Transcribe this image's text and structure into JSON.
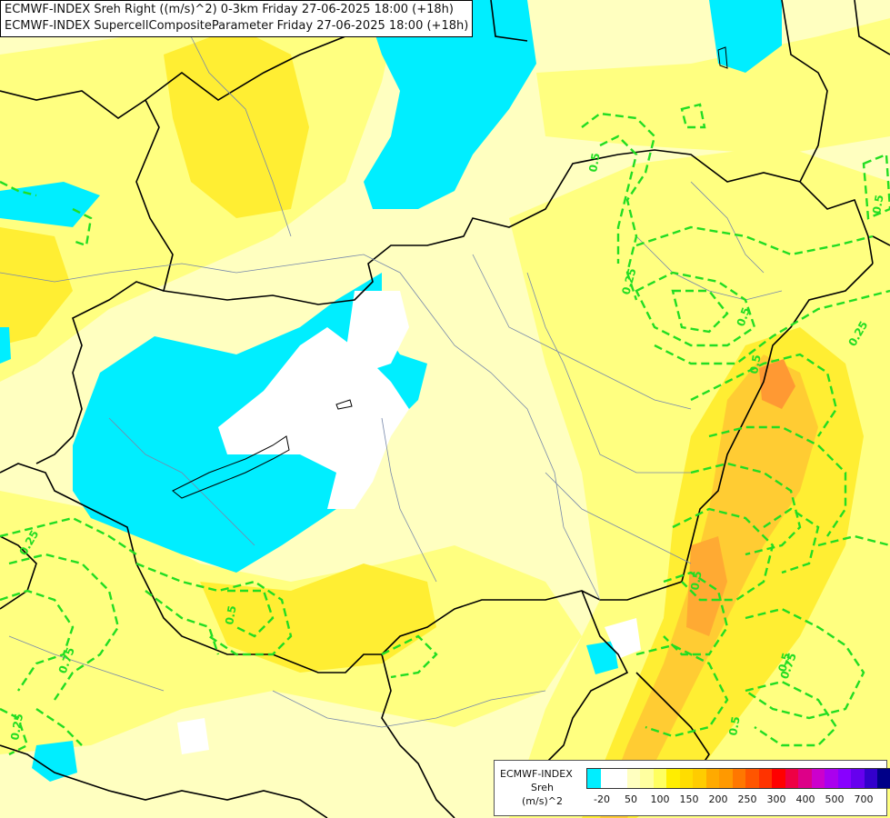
{
  "title": {
    "line1": "ECMWF-INDEX Sreh Right ((m/s)^2) 0-3km Friday 27-06-2025 18:00 (+18h)",
    "line2": "ECMWF-INDEX SupercellCompositeParameter Friday 27-06-2025 18:00 (+18h)"
  },
  "legend": {
    "model": "ECMWF-INDEX",
    "param": "Sreh",
    "unit": "(m/s)^2",
    "colors": [
      "#00eeff",
      "#ffffff",
      "#ffffff",
      "#ffffc0",
      "#ffffa0",
      "#ffff60",
      "#ffee00",
      "#ffdd00",
      "#ffcc00",
      "#ffaa00",
      "#ff9900",
      "#ff7700",
      "#ff5500",
      "#ff3300",
      "#ff0000",
      "#ee0044",
      "#dd0088",
      "#cc00cc",
      "#aa00ee",
      "#8800ff",
      "#6600ee",
      "#3300cc",
      "#000088"
    ],
    "ticks": [
      "-20",
      "50",
      "100",
      "150",
      "200",
      "250",
      "300",
      "400",
      "500",
      "700"
    ]
  },
  "contour_labels": [
    "0.25",
    "0.75",
    "0.5",
    "0.25",
    "0.5",
    "0.25",
    "0.5",
    "0.5",
    "0.25",
    "0.5",
    "0.5",
    "0.75",
    "0.5",
    "0.5"
  ],
  "colors": {
    "low": "#00eeff",
    "zero": "#ffffff",
    "pale": "#ffffc0",
    "mid": "#ffff80",
    "yellow": "#ffee00",
    "orange": "#ffcc33",
    "peak": "#ff9933",
    "scp_contour": "#22dd22"
  }
}
